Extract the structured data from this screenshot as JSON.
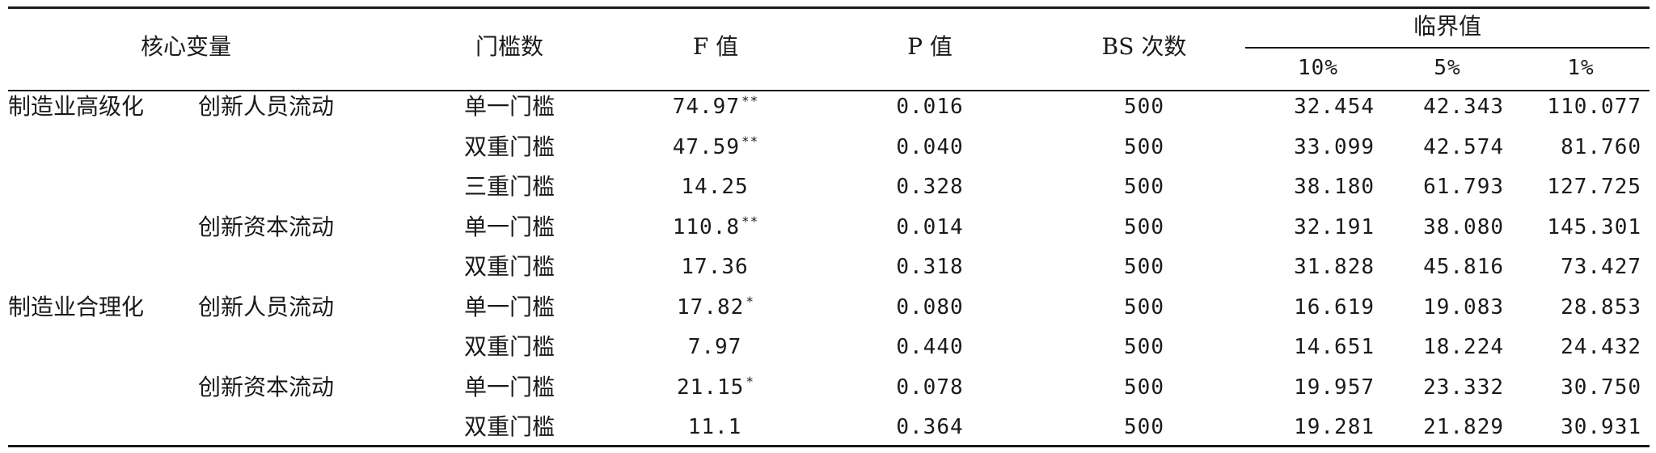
{
  "header": {
    "core_variable": "核心变量",
    "threshold_count": "门槛数",
    "f_value": "F 值",
    "p_value": "P 值",
    "bs_count": "BS 次数",
    "critical_value": "临界值",
    "crit_10": "10%",
    "crit_5": "5%",
    "crit_1": "1%"
  },
  "rows": [
    {
      "group": "制造业高级化",
      "sub": "创新人员流动",
      "threshold": "单一门槛",
      "f": "74.97",
      "stars": "**",
      "p": "0.016",
      "bs": "500",
      "c10": "32.454",
      "c5": "42.343",
      "c1": "110.077"
    },
    {
      "group": "",
      "sub": "",
      "threshold": "双重门槛",
      "f": "47.59",
      "stars": "**",
      "p": "0.040",
      "bs": "500",
      "c10": "33.099",
      "c5": "42.574",
      "c1": "81.760"
    },
    {
      "group": "",
      "sub": "",
      "threshold": "三重门槛",
      "f": "14.25",
      "stars": "",
      "p": "0.328",
      "bs": "500",
      "c10": "38.180",
      "c5": "61.793",
      "c1": "127.725"
    },
    {
      "group": "",
      "sub": "创新资本流动",
      "threshold": "单一门槛",
      "f": "110.8",
      "stars": "**",
      "p": "0.014",
      "bs": "500",
      "c10": "32.191",
      "c5": "38.080",
      "c1": "145.301"
    },
    {
      "group": "",
      "sub": "",
      "threshold": "双重门槛",
      "f": "17.36",
      "stars": "",
      "p": "0.318",
      "bs": "500",
      "c10": "31.828",
      "c5": "45.816",
      "c1": "73.427"
    },
    {
      "group": "制造业合理化",
      "sub": "创新人员流动",
      "threshold": "单一门槛",
      "f": "17.82",
      "stars": "*",
      "p": "0.080",
      "bs": "500",
      "c10": "16.619",
      "c5": "19.083",
      "c1": "28.853"
    },
    {
      "group": "",
      "sub": "",
      "threshold": "双重门槛",
      "f": "7.97",
      "stars": "",
      "p": "0.440",
      "bs": "500",
      "c10": "14.651",
      "c5": "18.224",
      "c1": "24.432"
    },
    {
      "group": "",
      "sub": "创新资本流动",
      "threshold": "单一门槛",
      "f": "21.15",
      "stars": "*",
      "p": "0.078",
      "bs": "500",
      "c10": "19.957",
      "c5": "23.332",
      "c1": "30.750"
    },
    {
      "group": "",
      "sub": "",
      "threshold": "双重门槛",
      "f": "11.1",
      "stars": "",
      "p": "0.364",
      "bs": "500",
      "c10": "19.281",
      "c5": "21.829",
      "c1": "30.931"
    }
  ]
}
